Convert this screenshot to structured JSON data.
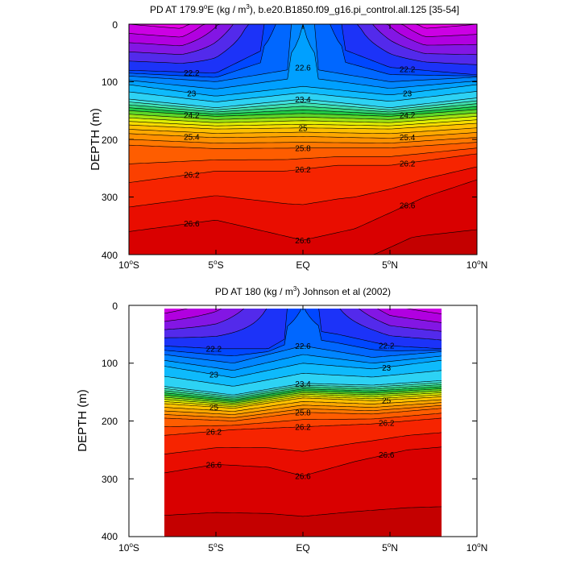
{
  "figure": {
    "panels": [
      {
        "title_main": "PD AT 179.9",
        "title_deg": "o",
        "title_lon_suffix": "E (kg / m",
        "title_exp": "3",
        "title_tail": "), b.e20.B1850.f09_g16.pi_control.all.125 [35-54]",
        "ylabel": "DEPTH (m)",
        "yticks": [
          "0",
          "100",
          "200",
          "300",
          "400"
        ],
        "xticks": [
          {
            "num": "10",
            "deg": "o",
            "hem": "S"
          },
          {
            "num": "5",
            "deg": "o",
            "hem": "S"
          },
          {
            "num": "EQ",
            "deg": "",
            "hem": ""
          },
          {
            "num": "5",
            "deg": "o",
            "hem": "N"
          },
          {
            "num": "10",
            "deg": "o",
            "hem": "N"
          }
        ]
      },
      {
        "title_main": "PD AT 180 (kg / m",
        "title_exp": "3",
        "title_tail": ") Johnson et al (2002)",
        "ylabel": "DEPTH (m)",
        "yticks": [
          "0",
          "100",
          "200",
          "300",
          "400"
        ],
        "xticks": [
          {
            "num": "10",
            "deg": "o",
            "hem": "S"
          },
          {
            "num": "5",
            "deg": "o",
            "hem": "S"
          },
          {
            "num": "EQ",
            "deg": "",
            "hem": ""
          },
          {
            "num": "5",
            "deg": "o",
            "hem": "N"
          },
          {
            "num": "10",
            "deg": "o",
            "hem": "N"
          }
        ]
      }
    ]
  },
  "chart_data": [
    {
      "type": "heatmap",
      "title": "PD AT 179.9°E (kg / m3), b.e20.B1850.f09_g16.pi_control.all.125 [35-54]",
      "xlabel": "",
      "ylabel": "DEPTH (m)",
      "xlim": [
        -10,
        10
      ],
      "ylim": [
        400,
        0
      ],
      "contour_interval": 0.2,
      "contour_levels": [
        21.0,
        26.8
      ],
      "color_range": [
        "magenta (low density)",
        "dark red (high density)"
      ],
      "surface_values": [
        {
          "lat": -10,
          "pd": 21.2
        },
        {
          "lat": -7,
          "pd": 21.1
        },
        {
          "lat": -4,
          "pd": 21.8
        },
        {
          "lat": 0,
          "pd": 22.8
        },
        {
          "lat": 4,
          "pd": 21.8
        },
        {
          "lat": 7,
          "pd": 21.1
        },
        {
          "lat": 10,
          "pd": 21.2
        }
      ],
      "isopycnals": [
        {
          "pd": 22.2,
          "depth": [
            {
              "lat": -10,
              "depth": 80
            },
            {
              "lat": -5,
              "depth": 85
            },
            {
              "lat": -2,
              "depth": 40
            },
            {
              "lat": 2,
              "depth": 40
            },
            {
              "lat": 5,
              "depth": 75
            },
            {
              "lat": 10,
              "depth": 88
            }
          ]
        },
        {
          "pd": 22.6,
          "depth": [
            {
              "lat": -10,
              "depth": 90
            },
            {
              "lat": -5,
              "depth": 100
            },
            {
              "lat": 0,
              "depth": 75
            },
            {
              "lat": 5,
              "depth": 100
            },
            {
              "lat": 10,
              "depth": 92
            }
          ]
        },
        {
          "pd": 23.0,
          "depth": [
            {
              "lat": -10,
              "depth": 105
            },
            {
              "lat": -5,
              "depth": 125
            },
            {
              "lat": 0,
              "depth": 108
            },
            {
              "lat": 5,
              "depth": 123
            },
            {
              "lat": 10,
              "depth": 105
            }
          ]
        },
        {
          "pd": 23.4,
          "depth": [
            {
              "lat": -10,
              "depth": 130
            },
            {
              "lat": -5,
              "depth": 145
            },
            {
              "lat": 0,
              "depth": 130
            },
            {
              "lat": 5,
              "depth": 145
            },
            {
              "lat": 10,
              "depth": 128
            }
          ]
        },
        {
          "pd": 24.2,
          "depth": [
            {
              "lat": -10,
              "depth": 150
            },
            {
              "lat": -5,
              "depth": 160
            },
            {
              "lat": 0,
              "depth": 155
            },
            {
              "lat": 5,
              "depth": 160
            },
            {
              "lat": 10,
              "depth": 148
            }
          ]
        },
        {
          "pd": 25.0,
          "depth": [
            {
              "lat": -10,
              "depth": 175
            },
            {
              "lat": -5,
              "depth": 182
            },
            {
              "lat": 0,
              "depth": 180
            },
            {
              "lat": 5,
              "depth": 182
            },
            {
              "lat": 10,
              "depth": 172
            }
          ]
        },
        {
          "pd": 25.4,
          "depth": [
            {
              "lat": -10,
              "depth": 190
            },
            {
              "lat": -5,
              "depth": 197
            },
            {
              "lat": 0,
              "depth": 195
            },
            {
              "lat": 5,
              "depth": 198
            },
            {
              "lat": 10,
              "depth": 188
            }
          ]
        },
        {
          "pd": 25.8,
          "depth": [
            {
              "lat": -10,
              "depth": 210
            },
            {
              "lat": -5,
              "depth": 216
            },
            {
              "lat": 0,
              "depth": 215
            },
            {
              "lat": 5,
              "depth": 215
            },
            {
              "lat": 10,
              "depth": 205
            }
          ]
        },
        {
          "pd": 26.2,
          "depth": [
            {
              "lat": -10,
              "depth": 275
            },
            {
              "lat": -5,
              "depth": 255
            },
            {
              "lat": -1,
              "depth": 255
            },
            {
              "lat": 2,
              "depth": 245
            },
            {
              "lat": 5,
              "depth": 245
            },
            {
              "lat": 10,
              "depth": 225
            }
          ]
        },
        {
          "pd": 26.6,
          "depth": [
            {
              "lat": -10,
              "depth": 360
            },
            {
              "lat": -5,
              "depth": 340
            },
            {
              "lat": 0,
              "depth": 375
            },
            {
              "lat": 3,
              "depth": 355
            },
            {
              "lat": 7,
              "depth": 300
            },
            {
              "lat": 10,
              "depth": 270
            }
          ]
        }
      ]
    },
    {
      "type": "heatmap",
      "title": "PD AT 180 (kg / m3) Johnson et al (2002)",
      "xlabel": "",
      "ylabel": "DEPTH (m)",
      "xlim": [
        -10,
        10
      ],
      "ylim": [
        400,
        0
      ],
      "data_extent_lat": [
        -8,
        8
      ],
      "contour_interval": 0.2,
      "contour_levels": [
        21.0,
        26.8
      ],
      "color_range": [
        "magenta (low density)",
        "dark red (high density)"
      ],
      "surface_values": [
        {
          "lat": -8,
          "pd": 21.2
        },
        {
          "lat": -5,
          "pd": 21.5
        },
        {
          "lat": -2,
          "pd": 22.0
        },
        {
          "lat": 0,
          "pd": 22.4
        },
        {
          "lat": 2,
          "pd": 22.0
        },
        {
          "lat": 5,
          "pd": 21.4
        },
        {
          "lat": 8,
          "pd": 21.2
        }
      ],
      "isopycnals": [
        {
          "pd": 22.2,
          "depth": [
            {
              "lat": -8,
              "depth": 70
            },
            {
              "lat": -5,
              "depth": 75
            },
            {
              "lat": -2,
              "depth": 75
            },
            {
              "lat": 0,
              "depth": 40
            },
            {
              "lat": 2,
              "depth": 50
            },
            {
              "lat": 5,
              "depth": 70
            },
            {
              "lat": 8,
              "depth": 75
            }
          ]
        },
        {
          "pd": 22.6,
          "depth": [
            {
              "lat": -8,
              "depth": 85
            },
            {
              "lat": -4,
              "depth": 100
            },
            {
              "lat": 0,
              "depth": 70
            },
            {
              "lat": 4,
              "depth": 90
            },
            {
              "lat": 8,
              "depth": 80
            }
          ]
        },
        {
          "pd": 23.0,
          "depth": [
            {
              "lat": -8,
              "depth": 105
            },
            {
              "lat": -4,
              "depth": 125
            },
            {
              "lat": 0,
              "depth": 100
            },
            {
              "lat": 4,
              "depth": 110
            },
            {
              "lat": 8,
              "depth": 95
            }
          ]
        },
        {
          "pd": 23.4,
          "depth": [
            {
              "lat": -8,
              "depth": 140
            },
            {
              "lat": -4,
              "depth": 155
            },
            {
              "lat": 0,
              "depth": 135
            },
            {
              "lat": 4,
              "depth": 138
            },
            {
              "lat": 8,
              "depth": 130
            }
          ]
        },
        {
          "pd": 25.0,
          "depth": [
            {
              "lat": -8,
              "depth": 170
            },
            {
              "lat": -4,
              "depth": 178
            },
            {
              "lat": 0,
              "depth": 160
            },
            {
              "lat": 4,
              "depth": 165
            },
            {
              "lat": 8,
              "depth": 158
            }
          ]
        },
        {
          "pd": 25.8,
          "depth": [
            {
              "lat": -8,
              "depth": 195
            },
            {
              "lat": -4,
              "depth": 200
            },
            {
              "lat": 0,
              "depth": 185
            },
            {
              "lat": 4,
              "depth": 188
            },
            {
              "lat": 8,
              "depth": 178
            }
          ]
        },
        {
          "pd": 26.2,
          "depth": [
            {
              "lat": -8,
              "depth": 225
            },
            {
              "lat": -4,
              "depth": 215
            },
            {
              "lat": 0,
              "depth": 210
            },
            {
              "lat": 4,
              "depth": 205
            },
            {
              "lat": 8,
              "depth": 195
            }
          ]
        },
        {
          "pd": 26.6,
          "depth": [
            {
              "lat": -8,
              "depth": 290
            },
            {
              "lat": -5,
              "depth": 275
            },
            {
              "lat": -2,
              "depth": 280
            },
            {
              "lat": 0,
              "depth": 295
            },
            {
              "lat": 3,
              "depth": 270
            },
            {
              "lat": 6,
              "depth": 250
            },
            {
              "lat": 8,
              "depth": 245
            }
          ]
        }
      ]
    }
  ]
}
